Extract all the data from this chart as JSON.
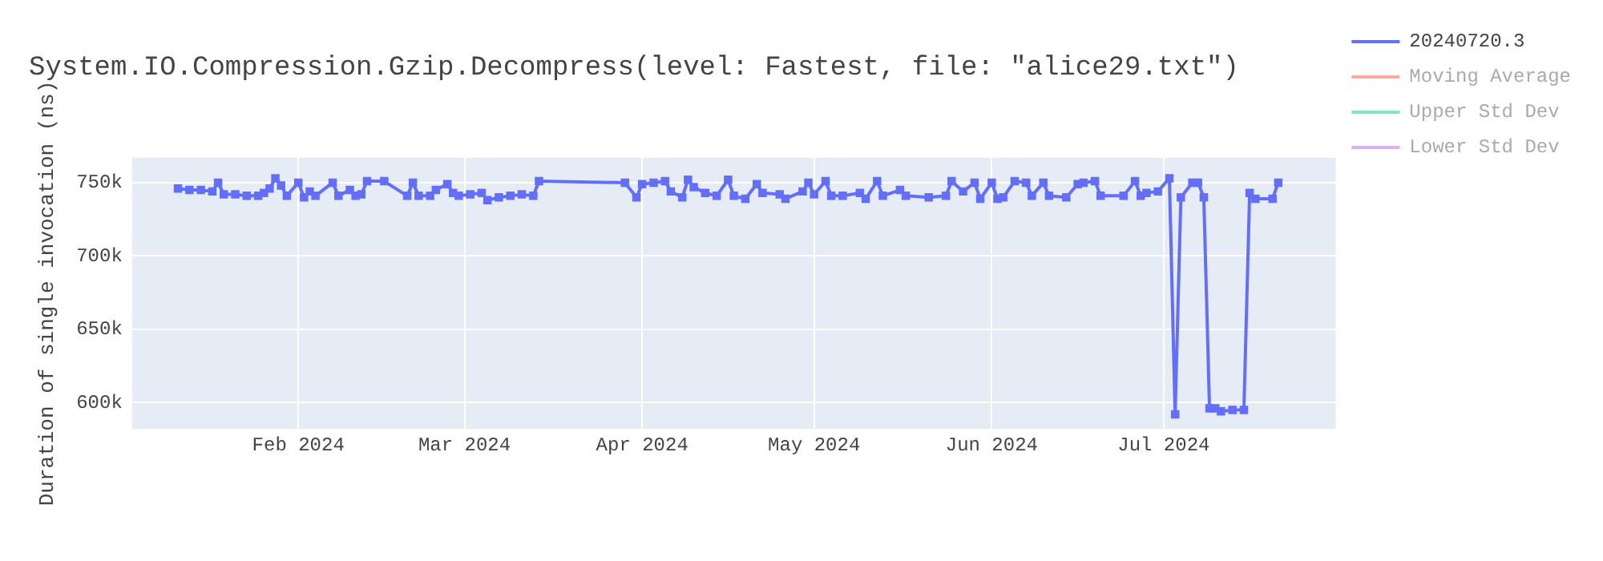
{
  "chart_data": {
    "type": "line",
    "title": "System.IO.Compression.Gzip.Decompress(level: Fastest, file: \"alice29.txt\")",
    "ylabel": "Duration of single invocation (ns)",
    "xlim": [
      "2024-01-03",
      "2024-07-31"
    ],
    "xticks": [
      {
        "value": "2024-02-01",
        "label": "Feb 2024"
      },
      {
        "value": "2024-03-01",
        "label": "Mar 2024"
      },
      {
        "value": "2024-04-01",
        "label": "Apr 2024"
      },
      {
        "value": "2024-05-01",
        "label": "May 2024"
      },
      {
        "value": "2024-06-01",
        "label": "Jun 2024"
      },
      {
        "value": "2024-07-01",
        "label": "Jul 2024"
      }
    ],
    "ylim": [
      582000,
      767000
    ],
    "yticks": [
      {
        "value": 600000,
        "label": "600k"
      },
      {
        "value": 650000,
        "label": "650k"
      },
      {
        "value": 700000,
        "label": "700k"
      },
      {
        "value": 750000,
        "label": "750k"
      }
    ],
    "grid": true,
    "legend": "top right",
    "marker": "square",
    "series": [
      {
        "name": "20240720.3",
        "color": "#636efa",
        "x": [
          "2024-01-11",
          "2024-01-13",
          "2024-01-15",
          "2024-01-17",
          "2024-01-18",
          "2024-01-19",
          "2024-01-21",
          "2024-01-23",
          "2024-01-25",
          "2024-01-26",
          "2024-01-27",
          "2024-01-28",
          "2024-01-29",
          "2024-01-30",
          "2024-02-01",
          "2024-02-02",
          "2024-02-03",
          "2024-02-04",
          "2024-02-07",
          "2024-02-08",
          "2024-02-10",
          "2024-02-11",
          "2024-02-12",
          "2024-02-13",
          "2024-02-16",
          "2024-02-20",
          "2024-02-21",
          "2024-02-22",
          "2024-02-24",
          "2024-02-25",
          "2024-02-27",
          "2024-02-28",
          "2024-02-29",
          "2024-03-02",
          "2024-03-04",
          "2024-03-05",
          "2024-03-07",
          "2024-03-09",
          "2024-03-11",
          "2024-03-13",
          "2024-03-14",
          "2024-03-29",
          "2024-03-31",
          "2024-04-01",
          "2024-04-03",
          "2024-04-05",
          "2024-04-06",
          "2024-04-08",
          "2024-04-09",
          "2024-04-10",
          "2024-04-12",
          "2024-04-14",
          "2024-04-16",
          "2024-04-17",
          "2024-04-19",
          "2024-04-21",
          "2024-04-22",
          "2024-04-25",
          "2024-04-26",
          "2024-04-29",
          "2024-04-30",
          "2024-05-01",
          "2024-05-03",
          "2024-05-04",
          "2024-05-06",
          "2024-05-09",
          "2024-05-10",
          "2024-05-12",
          "2024-05-13",
          "2024-05-16",
          "2024-05-17",
          "2024-05-21",
          "2024-05-24",
          "2024-05-25",
          "2024-05-27",
          "2024-05-29",
          "2024-05-30",
          "2024-06-01",
          "2024-06-02",
          "2024-06-03",
          "2024-06-05",
          "2024-06-07",
          "2024-06-08",
          "2024-06-10",
          "2024-06-11",
          "2024-06-14",
          "2024-06-16",
          "2024-06-17",
          "2024-06-19",
          "2024-06-20",
          "2024-06-24",
          "2024-06-26",
          "2024-06-27",
          "2024-06-28",
          "2024-06-30",
          "2024-07-02",
          "2024-07-03",
          "2024-07-04",
          "2024-07-06",
          "2024-07-07",
          "2024-07-08",
          "2024-07-09",
          "2024-07-10",
          "2024-07-11",
          "2024-07-13",
          "2024-07-15",
          "2024-07-16",
          "2024-07-17",
          "2024-07-20",
          "2024-07-21"
        ],
        "values": [
          746000,
          745000,
          745000,
          744000,
          750000,
          742000,
          742000,
          741000,
          741000,
          743000,
          746000,
          753000,
          748000,
          741000,
          750000,
          740000,
          744000,
          741000,
          750000,
          741000,
          745000,
          741000,
          742000,
          751000,
          751000,
          741000,
          750000,
          741000,
          741000,
          745000,
          749000,
          743000,
          741000,
          742000,
          743000,
          738000,
          740000,
          741000,
          742000,
          741000,
          751000,
          750000,
          740000,
          749000,
          750000,
          751000,
          744000,
          740000,
          752000,
          747000,
          743000,
          741000,
          752000,
          741000,
          739000,
          749000,
          743000,
          742000,
          739000,
          744000,
          750000,
          742000,
          751000,
          741000,
          741000,
          743000,
          739000,
          751000,
          741000,
          745000,
          741000,
          740000,
          741000,
          751000,
          744000,
          750000,
          739000,
          750000,
          739000,
          740000,
          751000,
          750000,
          741000,
          750000,
          741000,
          740000,
          749000,
          750000,
          751000,
          741000,
          741000,
          751000,
          741000,
          743000,
          744000,
          753000,
          592000,
          740000,
          750000,
          750000,
          740000,
          596000,
          596000,
          594000,
          595000,
          595000,
          743000,
          739000,
          739000,
          750000
        ]
      },
      {
        "name": "Moving Average",
        "color": "#f7aa9d"
      },
      {
        "name": "Upper Std Dev",
        "color": "#80e5cb"
      },
      {
        "name": "Lower Std Dev",
        "color": "#d5b1fc"
      }
    ]
  }
}
